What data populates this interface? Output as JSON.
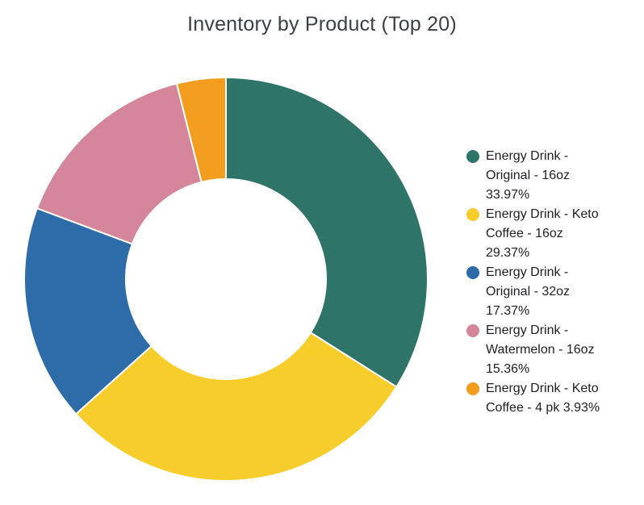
{
  "chart_data": {
    "type": "pie",
    "subtype": "donut",
    "title": "Inventory by Product (Top 20)",
    "labels": [
      "Energy Drink - Original - 16oz",
      "Energy Drink - Keto Coffee - 16oz",
      "Energy Drink - Original - 32oz",
      "Energy Drink - Watermelon - 16oz",
      "Energy Drink - Keto Coffee - 4 pk"
    ],
    "values": [
      33.97,
      29.37,
      17.37,
      15.36,
      3.93
    ],
    "unit": "percent",
    "colors": [
      "#2F7469",
      "#F6CD2B",
      "#2D6CA9",
      "#D4859A",
      "#F29D1E"
    ],
    "donut_hole_ratio": 0.5,
    "start_angle_deg": 0,
    "direction": "clockwise",
    "legend_position": "right",
    "background_color": "#ffffff",
    "slice_border_color": "#ffffff"
  },
  "legend": {
    "items": [
      {
        "color": "#2F7469",
        "label": "Energy Drink - Original - 16oz",
        "value_pct": "33.97%",
        "lines": [
          "Energy Drink -",
          "Original - 16oz",
          "33.97%"
        ]
      },
      {
        "color": "#F6CD2B",
        "label": "Energy Drink - Keto Coffee - 16oz",
        "value_pct": "29.37%",
        "lines": [
          "Energy Drink - Keto",
          "Coffee - 16oz",
          "29.37%"
        ]
      },
      {
        "color": "#2D6CA9",
        "label": "Energy Drink - Original - 32oz",
        "value_pct": "17.37%",
        "lines": [
          "Energy Drink -",
          "Original - 32oz",
          "17.37%"
        ]
      },
      {
        "color": "#D4859A",
        "label": "Energy Drink - Watermelon - 16oz",
        "value_pct": "15.36%",
        "lines": [
          "Energy Drink -",
          "Watermelon - 16oz",
          "15.36%"
        ]
      },
      {
        "color": "#F29D1E",
        "label": "Energy Drink - Keto Coffee - 4 pk",
        "value_pct": "3.93%",
        "lines": [
          "Energy Drink - Keto",
          "Coffee - 4 pk 3.93%"
        ]
      }
    ]
  }
}
